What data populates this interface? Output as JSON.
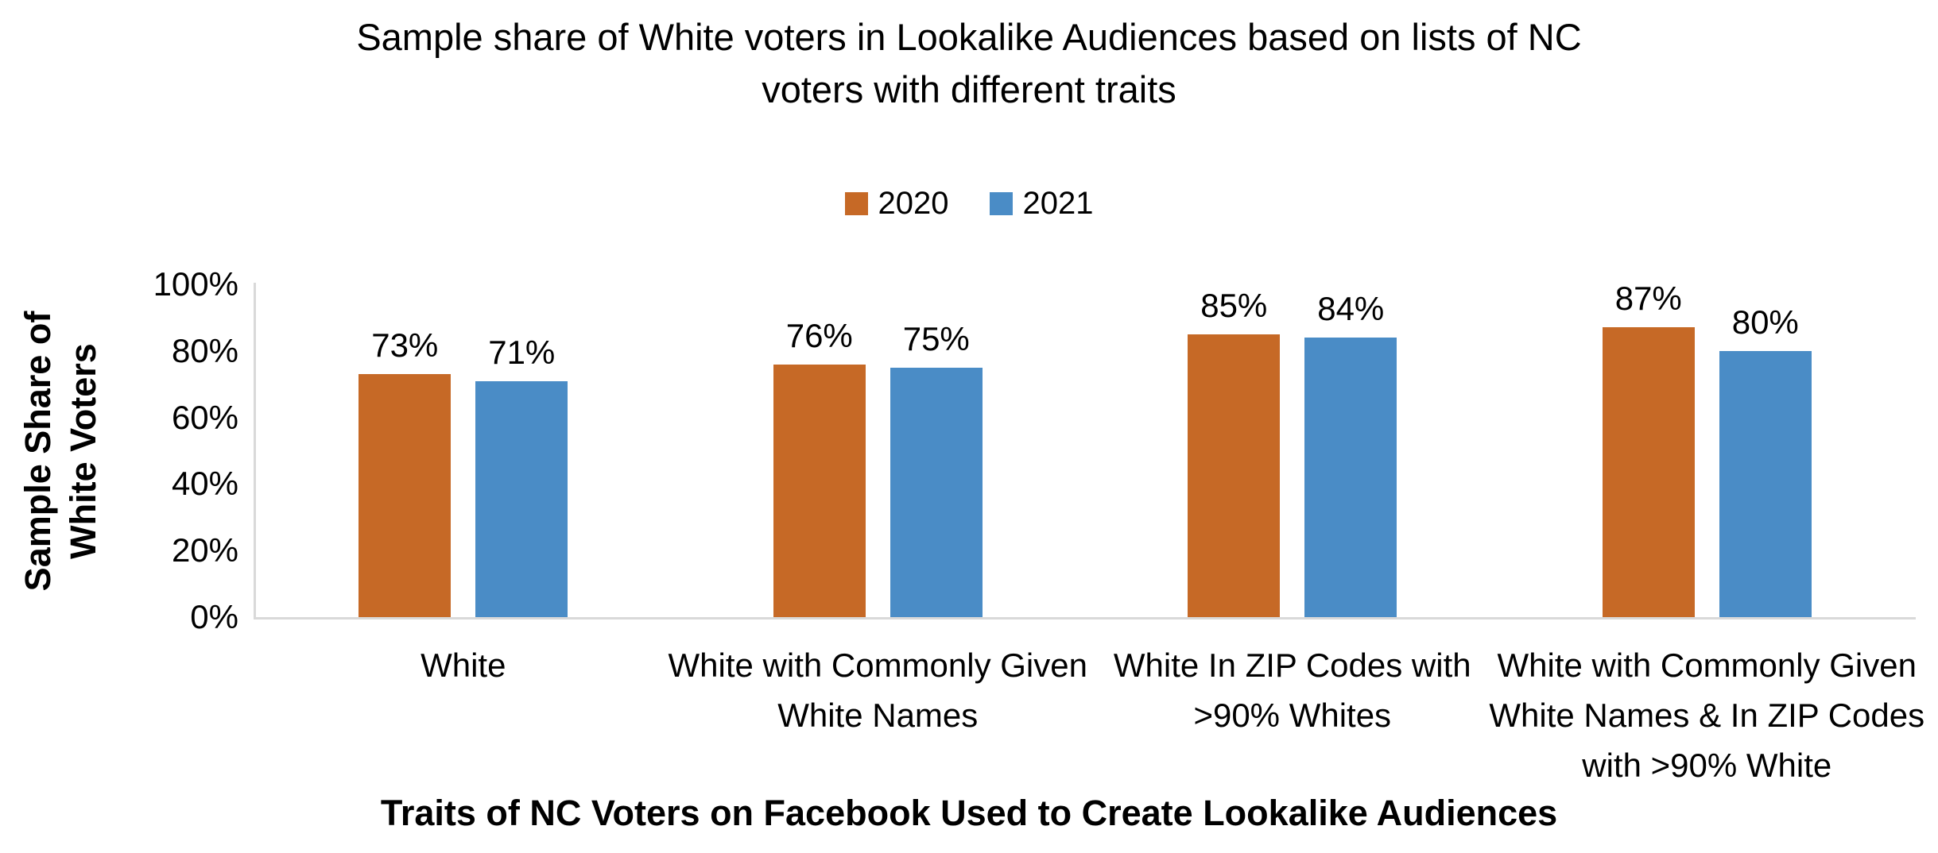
{
  "title": {
    "lines": [
      "Sample share of White voters in Lookalike Audiences based on lists of NC",
      "voters with different traits"
    ]
  },
  "legend": [
    {
      "label": "2020",
      "color": "#C66926"
    },
    {
      "label": "2021",
      "color": "#4A8CC6"
    }
  ],
  "y_axis": {
    "title_lines": [
      "Sample Share of",
      "White Voters"
    ],
    "ticks": [
      "0%",
      "20%",
      "40%",
      "60%",
      "80%",
      "100%"
    ]
  },
  "x_axis": {
    "title": "Traits of NC Voters on Facebook Used to Create Lookalike Audiences",
    "category_lines": [
      [
        "White"
      ],
      [
        "White with Commonly Given",
        "White Names"
      ],
      [
        "White In ZIP Codes with",
        ">90% Whites"
      ],
      [
        "White with Commonly Given",
        "White Names & In ZIP Codes",
        "with >90% White"
      ]
    ]
  },
  "colors": {
    "series_2020": "#C66926",
    "series_2021": "#4A8CC6",
    "axis_line": "#D9D9D9",
    "text": "#000000"
  },
  "chart_data": {
    "type": "bar",
    "title": "Sample share of White voters in Lookalike Audiences based on lists of NC voters with different traits",
    "xlabel": "Traits of NC Voters on Facebook Used to Create Lookalike Audiences",
    "ylabel": "Sample Share of White Voters",
    "categories": [
      "White",
      "White with Commonly Given White Names",
      "White In ZIP Codes with >90% Whites",
      "White with Commonly Given White Names & In ZIP Codes with >90% White"
    ],
    "series": [
      {
        "name": "2020",
        "color": "#C66926",
        "values": [
          73,
          76,
          85,
          87
        ]
      },
      {
        "name": "2021",
        "color": "#4A8CC6",
        "values": [
          71,
          75,
          84,
          80
        ]
      }
    ],
    "value_label_format": "percent",
    "ylim": [
      0,
      100
    ],
    "y_tick_step": 20,
    "grid": false,
    "legend_position": "top"
  }
}
